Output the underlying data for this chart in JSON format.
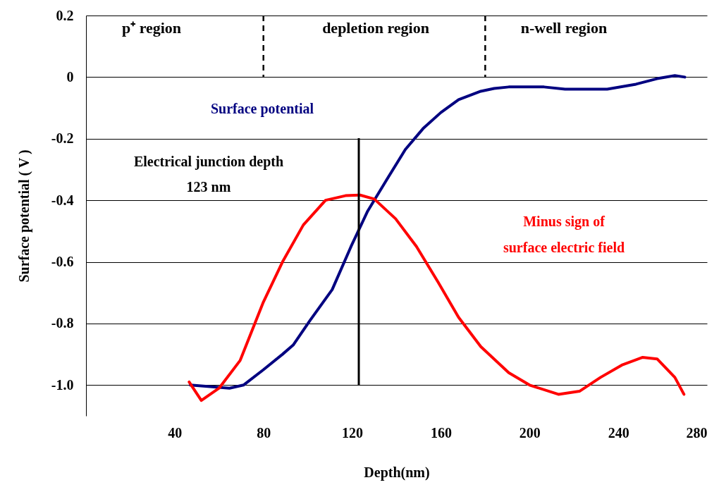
{
  "chart_data": {
    "type": "line",
    "xlabel": "Depth(nm)",
    "ylabel": "Surface potential ( V )",
    "xlim": [
      0,
      280
    ],
    "xticks": [
      40,
      80,
      120,
      160,
      200,
      240,
      280
    ],
    "ylim": [
      -1.1,
      0.2
    ],
    "yticks": [
      0.2,
      0,
      {
        "value": -0.2,
        "label": "-0.2"
      },
      {
        "value": -0.4,
        "label": "-0.4"
      },
      {
        "value": -0.6,
        "label": "-0.6"
      },
      {
        "value": -0.8,
        "label": "-0.8"
      },
      {
        "value": -1.0,
        "label": "-1.0"
      }
    ],
    "grid": "y",
    "line_style": "solid",
    "series": [
      {
        "name": "Surface potential",
        "color": "#000080",
        "x": [
          47,
          56,
          64.7,
          71,
          80,
          88.6,
          93.4,
          101,
          111,
          119.5,
          127,
          135,
          144,
          152,
          160,
          168,
          178,
          184,
          190.6,
          206.5,
          216,
          235,
          248,
          257.5,
          265.5,
          270
        ],
        "values": [
          -1.0,
          -1.005,
          -1.01,
          -1.0,
          -0.95,
          -0.9,
          -0.87,
          -0.79,
          -0.69,
          -0.55,
          -0.435,
          -0.34,
          -0.235,
          -0.167,
          -0.115,
          -0.073,
          -0.046,
          -0.037,
          -0.032,
          -0.032,
          -0.039,
          -0.039,
          -0.023,
          -0.005,
          0.005,
          0
        ]
      },
      {
        "name": "Minus sign of surface electric field",
        "color": "#ff0000",
        "x": [
          46.5,
          52,
          60,
          69.5,
          80,
          88.6,
          98,
          108,
          117,
          123.6,
          130,
          139.6,
          149,
          158.7,
          168,
          178,
          190.6,
          200,
          213,
          222.5,
          232,
          241.6,
          251,
          257.5,
          265.5,
          269.6
        ],
        "values": [
          -0.99,
          -1.05,
          -1.01,
          -0.92,
          -0.73,
          -0.6,
          -0.48,
          -0.4,
          -0.385,
          -0.383,
          -0.396,
          -0.46,
          -0.55,
          -0.665,
          -0.78,
          -0.875,
          -0.96,
          -1.0,
          -1.03,
          -1.02,
          -0.975,
          -0.935,
          -0.91,
          -0.915,
          -0.975,
          -1.03
        ]
      }
    ],
    "ref_lines": [
      {
        "axis": "x",
        "value": 123,
        "label": "Electrical junction depth\n123 nm",
        "color": "#000000",
        "line_style": "solid"
      },
      {
        "axis": "x",
        "value": 80,
        "label": null,
        "color": "#000000",
        "line_style": "dashed"
      },
      {
        "axis": "x",
        "value": 180,
        "label": null,
        "color": "#000000",
        "line_style": "dashed"
      }
    ],
    "annotations": [
      "p⁺ region",
      "depletion region",
      "n-well region"
    ]
  }
}
